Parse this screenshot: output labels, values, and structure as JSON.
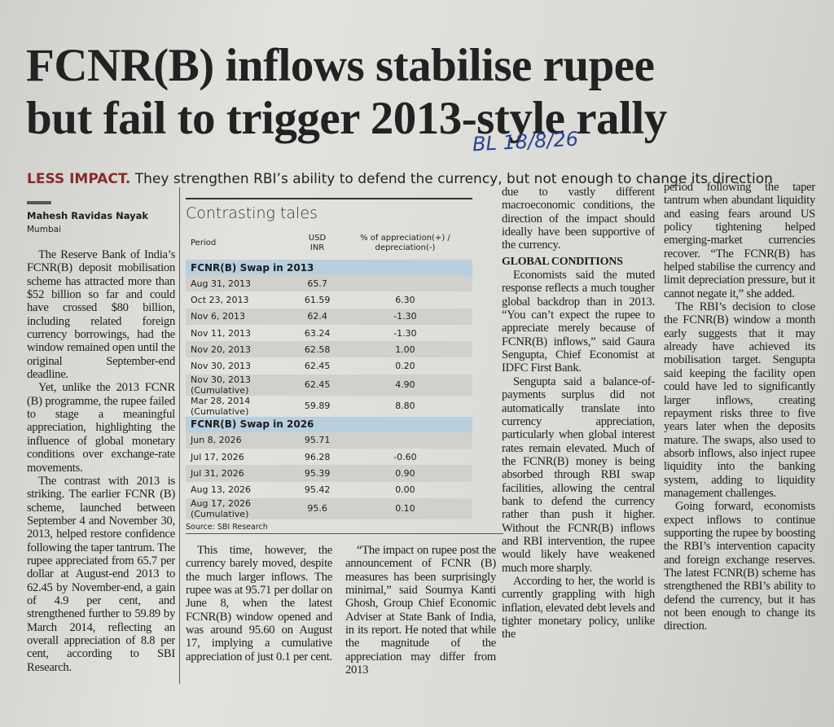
{
  "header": {
    "title_lines": [
      "FCNR(B) inflows stabilise rupee",
      "but fail to trigger 2013-style rally"
    ],
    "kicker": "LESS IMPACT.",
    "dek": "They strengthen RBI’s ability to defend the currency, but not enough to change its direction"
  },
  "annotation": "BL 18/8/26",
  "byline": {
    "author": "Mahesh Ravidas Nayak",
    "location": "Mumbai"
  },
  "table": {
    "title": "Contrasting tales",
    "columns": [
      "Period",
      "USD INR",
      "% of appreciation(+) / depreciation(-)"
    ],
    "sections": [
      {
        "label": "FCNR(B) Swap in 2013",
        "rows": [
          [
            "Aug 31, 2013",
            "65.7"
          ],
          [
            "Oct 23, 2013",
            "61.59",
            "6.30"
          ],
          [
            "Nov 6, 2013",
            "62.4",
            "-1.30"
          ],
          [
            "Nov 11, 2013",
            "63.24",
            "-1.30"
          ],
          [
            "Nov 20, 2013",
            "62.58",
            "1.00"
          ],
          [
            "Nov 30, 2013",
            "62.45",
            "0.20"
          ],
          [
            "Nov 30, 2013 (Cumulative)",
            "62.45",
            "4.90"
          ],
          [
            "Mar 28, 2014 (Cumulative)",
            "59.89",
            "8.80"
          ]
        ]
      },
      {
        "label": "FCNR(B) Swap in 2026",
        "rows": [
          [
            "Jun 8, 2026",
            "95.71"
          ],
          [
            "Jul 17, 2026",
            "96.28",
            "-0.60"
          ],
          [
            "Jul 31, 2026",
            "95.39",
            "0.90"
          ],
          [
            "Aug 13, 2026",
            "95.42",
            "0.00"
          ],
          [
            "Aug 17, 2026 (Cumulative)",
            "95.6",
            "0.10"
          ]
        ]
      }
    ],
    "source": "Source: SBI Research"
  },
  "body": {
    "subhead": "GLOBAL CONDITIONS",
    "columns": [
      [
        "The Reserve Bank of India’s FCNR(B) deposit mobilisation scheme has attracted more than $52 billion so far and could have crossed $80 billion, including related foreign currency borrowings, had the window remained open until the original September-end deadline.",
        "Yet, unlike the 2013 FCNR (B) programme, the rupee failed to stage a meaningful appreciation, highlighting the influence of global monetary conditions over exchange-rate movements.",
        "The contrast with 2013 is striking. The earlier FCNR (B) scheme, launched between September 4 and November 30, 2013, helped restore confidence following the taper tantrum. The rupee appreciated from 65.7 per dollar at August-end 2013 to 62.45 by November-end, a gain of 4.9 per cent, and strengthened further to 59.89 by March 2014, reflecting an overall appreciation of 8.8 per cent, according to SBI Research."
      ],
      [
        "This time, however, the currency barely moved, despite the much larger inflows. The rupee was at 95.71 per dollar on June 8, when the latest FCNR(B) window opened and was around 95.60 on August 17, implying a cumulative appreciation of just 0.1 per cent."
      ],
      [
        "“The impact on rupee post the announcement of FCNR (B) measures has been surprisingly minimal,” said Soumya Kanti Ghosh, Group Chief Economic Adviser at State Bank of India, in its report. He noted that while the magnitude of the appreciation may differ from 2013"
      ],
      [
        "due to vastly different macroeconomic conditions, the direction of the impact should ideally have been supportive of the currency.",
        "Economists said the muted response reflects a much tougher global backdrop than in 2013. “You can’t expect the rupee to appreciate merely because of FCNR(B) inflows,” said Gaura Sengupta, Chief Economist at IDFC First Bank.",
        "Sengupta said a balance-of-payments surplus did not automatically translate into currency appreciation, particularly when global interest rates remain elevated. Much of the FCNR(B) money is being absorbed through RBI swap facilities, allowing the central bank to defend the currency rather than push it higher. Without the FCNR(B) inflows and RBI intervention, the rupee would likely have weakened much more sharply.",
        "According to her, the world is currently grappling with high inflation, elevated debt levels and tighter monetary policy, unlike the"
      ],
      [
        "period following the taper tantrum when abundant liquidity and easing fears around US policy tightening helped emerging-market currencies recover. “The FCNR(B) has helped stabilise the currency and limit depreciation pressure, but it cannot negate it,” she added.",
        "The RBI’s decision to close the FCNR(B) window a month early suggests that it may already have achieved its mobilisation target. Sengupta said keeping the facility open could have led to significantly larger inflows, creating repayment risks three to five years later when the deposits mature. The swaps, also used to absorb inflows, also inject rupee liquidity into the banking system, adding to liquidity management challenges.",
        "Going forward, economists expect inflows to continue supporting the rupee by boosting the RBI’s intervention capacity and foreign exchange reserves. The latest FCNR(B) scheme has strengthened the RBI’s ability to defend the currency, but it has not been enough to change its direction."
      ]
    ]
  }
}
